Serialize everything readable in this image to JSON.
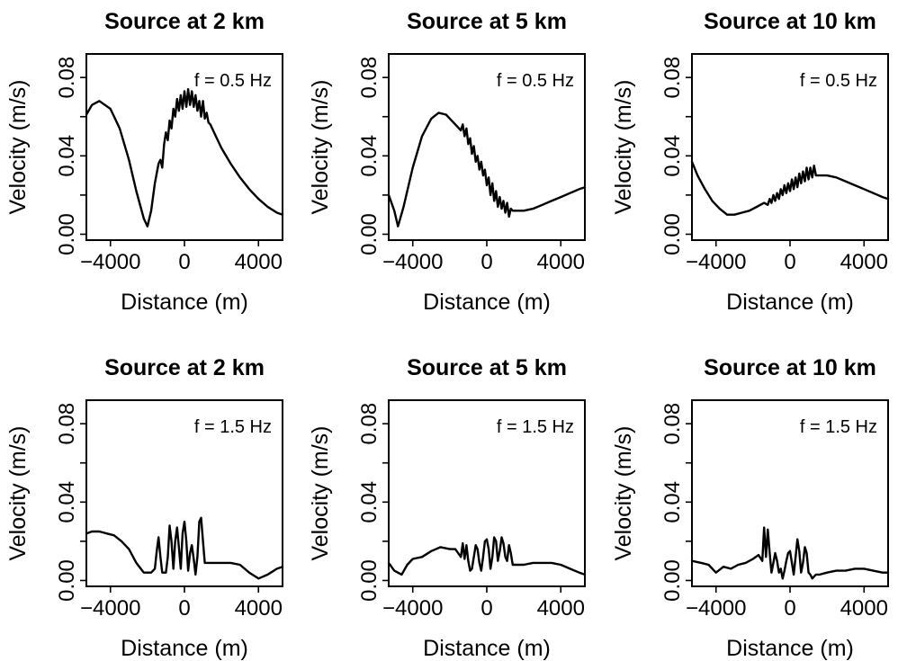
{
  "chart_data": [
    {
      "type": "line",
      "title": "Source at 2 km",
      "xlabel": "Distance (m)",
      "ylabel": "Velocity (m/s)",
      "annotation": "f = 0.5 Hz",
      "xlim": [
        -5300,
        5300
      ],
      "ylim": [
        -0.003,
        0.092
      ],
      "xticks": [
        -4000,
        0,
        4000
      ],
      "xtick_labels": [
        "−4000",
        "0",
        "4000"
      ],
      "yticks": [
        0.0,
        0.02,
        0.04,
        0.06,
        0.08
      ],
      "ytick_labels": [
        "0.00",
        "",
        "0.04",
        "",
        "0.08"
      ],
      "grid": false,
      "series": [
        {
          "x": [
            -5300,
            -5000,
            -4600,
            -4000,
            -3500,
            -3000,
            -2600,
            -2200,
            -2000,
            -1800,
            -1600,
            -1400,
            -1300,
            -1200,
            -1100,
            -1000,
            -900,
            -800,
            -700,
            -600,
            -500,
            -400,
            -300,
            -200,
            -100,
            0,
            100,
            200,
            300,
            400,
            500,
            600,
            700,
            800,
            900,
            1000,
            1100,
            1200,
            1300,
            1400,
            1600,
            2000,
            2500,
            3000,
            3500,
            4000,
            4500,
            5000,
            5300
          ],
          "y": [
            0.061,
            0.066,
            0.068,
            0.064,
            0.054,
            0.038,
            0.022,
            0.008,
            0.004,
            0.012,
            0.026,
            0.036,
            0.038,
            0.034,
            0.046,
            0.052,
            0.048,
            0.058,
            0.054,
            0.064,
            0.06,
            0.069,
            0.063,
            0.071,
            0.064,
            0.073,
            0.065,
            0.074,
            0.066,
            0.073,
            0.065,
            0.071,
            0.063,
            0.068,
            0.06,
            0.068,
            0.059,
            0.062,
            0.057,
            0.056,
            0.052,
            0.044,
            0.036,
            0.029,
            0.023,
            0.018,
            0.014,
            0.011,
            0.01
          ]
        }
      ]
    },
    {
      "type": "line",
      "title": "Source at 5 km",
      "xlabel": "Distance (m)",
      "ylabel": "Velocity (m/s)",
      "annotation": "f = 0.5 Hz",
      "xlim": [
        -5300,
        5300
      ],
      "ylim": [
        -0.003,
        0.092
      ],
      "xticks": [
        -4000,
        0,
        4000
      ],
      "xtick_labels": [
        "−4000",
        "0",
        "4000"
      ],
      "yticks": [
        0.0,
        0.02,
        0.04,
        0.06,
        0.08
      ],
      "ytick_labels": [
        "0.00",
        "",
        "0.04",
        "",
        "0.08"
      ],
      "grid": false,
      "series": [
        {
          "x": [
            -5300,
            -5000,
            -4800,
            -4500,
            -4000,
            -3500,
            -3000,
            -2600,
            -2200,
            -1900,
            -1600,
            -1400,
            -1300,
            -1200,
            -1100,
            -1000,
            -900,
            -800,
            -700,
            -600,
            -500,
            -400,
            -300,
            -200,
            -100,
            0,
            100,
            200,
            300,
            400,
            500,
            600,
            700,
            800,
            900,
            1000,
            1100,
            1200,
            1300,
            1400,
            1600,
            2000,
            2500,
            3000,
            3500,
            4000,
            4500,
            5000,
            5300
          ],
          "y": [
            0.02,
            0.012,
            0.004,
            0.014,
            0.034,
            0.05,
            0.059,
            0.062,
            0.061,
            0.058,
            0.055,
            0.053,
            0.056,
            0.05,
            0.054,
            0.046,
            0.049,
            0.041,
            0.045,
            0.037,
            0.04,
            0.033,
            0.037,
            0.03,
            0.033,
            0.025,
            0.029,
            0.02,
            0.026,
            0.017,
            0.022,
            0.014,
            0.019,
            0.013,
            0.017,
            0.011,
            0.016,
            0.009,
            0.013,
            0.012,
            0.012,
            0.012,
            0.013,
            0.015,
            0.017,
            0.019,
            0.021,
            0.023,
            0.024
          ]
        }
      ]
    },
    {
      "type": "line",
      "title": "Source at 10 km",
      "xlabel": "Distance (m)",
      "ylabel": "Velocity (m/s)",
      "annotation": "f = 0.5 Hz",
      "xlim": [
        -5300,
        5300
      ],
      "ylim": [
        -0.003,
        0.092
      ],
      "xticks": [
        -4000,
        0,
        4000
      ],
      "xtick_labels": [
        "−4000",
        "0",
        "4000"
      ],
      "yticks": [
        0.0,
        0.02,
        0.04,
        0.06,
        0.08
      ],
      "ytick_labels": [
        "0.00",
        "",
        "0.04",
        "",
        "0.08"
      ],
      "grid": false,
      "series": [
        {
          "x": [
            -5300,
            -5000,
            -4600,
            -4200,
            -3800,
            -3400,
            -3000,
            -2600,
            -2200,
            -1800,
            -1400,
            -1200,
            -1100,
            -1000,
            -900,
            -800,
            -700,
            -600,
            -500,
            -400,
            -300,
            -200,
            -100,
            0,
            100,
            200,
            300,
            400,
            500,
            600,
            700,
            800,
            900,
            1000,
            1100,
            1200,
            1300,
            1400,
            1600,
            2000,
            2500,
            3000,
            3500,
            4000,
            4500,
            5000,
            5300
          ],
          "y": [
            0.037,
            0.03,
            0.023,
            0.017,
            0.013,
            0.01,
            0.01,
            0.011,
            0.012,
            0.014,
            0.016,
            0.015,
            0.018,
            0.016,
            0.02,
            0.017,
            0.021,
            0.018,
            0.023,
            0.02,
            0.025,
            0.021,
            0.026,
            0.022,
            0.028,
            0.023,
            0.029,
            0.024,
            0.031,
            0.026,
            0.032,
            0.027,
            0.034,
            0.028,
            0.034,
            0.029,
            0.035,
            0.03,
            0.03,
            0.03,
            0.029,
            0.027,
            0.025,
            0.023,
            0.021,
            0.019,
            0.018
          ]
        }
      ]
    },
    {
      "type": "line",
      "title": "Source at 2 km",
      "xlabel": "Distance (m)",
      "ylabel": "Velocity (m/s)",
      "annotation": "f = 1.5 Hz",
      "xlim": [
        -5300,
        5300
      ],
      "ylim": [
        -0.003,
        0.092
      ],
      "xticks": [
        -4000,
        0,
        4000
      ],
      "xtick_labels": [
        "−4000",
        "0",
        "4000"
      ],
      "yticks": [
        0.0,
        0.02,
        0.04,
        0.06,
        0.08
      ],
      "ytick_labels": [
        "0.00",
        "",
        "0.04",
        "",
        "0.08"
      ],
      "grid": false,
      "series": [
        {
          "x": [
            -5300,
            -5000,
            -4600,
            -4200,
            -3800,
            -3400,
            -3000,
            -2600,
            -2200,
            -1800,
            -1600,
            -1500,
            -1400,
            -1300,
            -1200,
            -1000,
            -900,
            -800,
            -700,
            -600,
            -500,
            -400,
            -300,
            -200,
            -100,
            0,
            100,
            200,
            300,
            400,
            500,
            600,
            700,
            800,
            900,
            1000,
            1100,
            1200,
            1300,
            1400,
            1600,
            2000,
            2500,
            3000,
            3500,
            4000,
            4500,
            5000,
            5300
          ],
          "y": [
            0.024,
            0.025,
            0.025,
            0.024,
            0.023,
            0.02,
            0.016,
            0.009,
            0.004,
            0.004,
            0.006,
            0.015,
            0.022,
            0.012,
            0.004,
            0.004,
            0.012,
            0.028,
            0.02,
            0.006,
            0.02,
            0.027,
            0.017,
            0.006,
            0.024,
            0.03,
            0.02,
            0.005,
            0.014,
            0.018,
            0.011,
            0.003,
            0.012,
            0.03,
            0.032,
            0.02,
            0.009,
            0.009,
            0.009,
            0.009,
            0.009,
            0.009,
            0.009,
            0.008,
            0.004,
            0.001,
            0.003,
            0.006,
            0.007
          ]
        }
      ]
    },
    {
      "type": "line",
      "title": "Source at 5 km",
      "xlabel": "Distance (m)",
      "ylabel": "Velocity (m/s)",
      "annotation": "f = 1.5 Hz",
      "xlim": [
        -5300,
        5300
      ],
      "ylim": [
        -0.003,
        0.092
      ],
      "xticks": [
        -4000,
        0,
        4000
      ],
      "xtick_labels": [
        "−4000",
        "0",
        "4000"
      ],
      "yticks": [
        0.0,
        0.02,
        0.04,
        0.06,
        0.08
      ],
      "ytick_labels": [
        "0.00",
        "",
        "0.04",
        "",
        "0.08"
      ],
      "grid": false,
      "series": [
        {
          "x": [
            -5300,
            -5000,
            -4600,
            -4300,
            -4000,
            -3500,
            -3000,
            -2500,
            -2000,
            -1700,
            -1400,
            -1300,
            -1200,
            -1100,
            -1000,
            -900,
            -800,
            -700,
            -600,
            -500,
            -400,
            -300,
            -200,
            -100,
            0,
            100,
            200,
            300,
            400,
            500,
            600,
            700,
            800,
            900,
            1000,
            1100,
            1200,
            1300,
            1400,
            1600,
            2000,
            2500,
            3000,
            3500,
            4000,
            4500,
            5000,
            5300
          ],
          "y": [
            0.009,
            0.005,
            0.003,
            0.008,
            0.011,
            0.012,
            0.015,
            0.017,
            0.016,
            0.016,
            0.012,
            0.019,
            0.011,
            0.018,
            0.01,
            0.005,
            0.006,
            0.012,
            0.018,
            0.016,
            0.009,
            0.005,
            0.012,
            0.02,
            0.021,
            0.016,
            0.006,
            0.012,
            0.022,
            0.02,
            0.01,
            0.015,
            0.022,
            0.019,
            0.012,
            0.01,
            0.018,
            0.014,
            0.008,
            0.008,
            0.008,
            0.009,
            0.009,
            0.009,
            0.008,
            0.006,
            0.004,
            0.003
          ]
        }
      ]
    },
    {
      "type": "line",
      "title": "Source at 10 km",
      "xlabel": "Distance (m)",
      "ylabel": "Velocity (m/s)",
      "annotation": "f = 1.5 Hz",
      "xlim": [
        -5300,
        5300
      ],
      "ylim": [
        -0.003,
        0.092
      ],
      "xticks": [
        -4000,
        0,
        4000
      ],
      "xtick_labels": [
        "−4000",
        "0",
        "4000"
      ],
      "yticks": [
        0.0,
        0.02,
        0.04,
        0.06,
        0.08
      ],
      "ytick_labels": [
        "0.00",
        "",
        "0.04",
        "",
        "0.08"
      ],
      "grid": false,
      "series": [
        {
          "x": [
            -5300,
            -4800,
            -4400,
            -4000,
            -3600,
            -3200,
            -2800,
            -2400,
            -2000,
            -1700,
            -1500,
            -1400,
            -1300,
            -1200,
            -1100,
            -1000,
            -900,
            -800,
            -700,
            -600,
            -500,
            -400,
            -300,
            -200,
            -100,
            0,
            100,
            200,
            300,
            400,
            500,
            600,
            700,
            800,
            900,
            1000,
            1100,
            1200,
            1300,
            1400,
            1600,
            2000,
            2500,
            3000,
            3500,
            4000,
            4500,
            5000,
            5300
          ],
          "y": [
            0.01,
            0.009,
            0.008,
            0.004,
            0.007,
            0.006,
            0.008,
            0.009,
            0.011,
            0.013,
            0.01,
            0.027,
            0.012,
            0.026,
            0.014,
            0.004,
            0.009,
            0.014,
            0.01,
            0.004,
            0.006,
            0.001,
            0.005,
            0.01,
            0.014,
            0.015,
            0.009,
            0.003,
            0.012,
            0.021,
            0.015,
            0.004,
            0.009,
            0.017,
            0.014,
            0.004,
            0.003,
            0.001,
            0.002,
            0.003,
            0.003,
            0.004,
            0.005,
            0.005,
            0.006,
            0.006,
            0.005,
            0.004,
            0.004
          ]
        }
      ]
    }
  ]
}
